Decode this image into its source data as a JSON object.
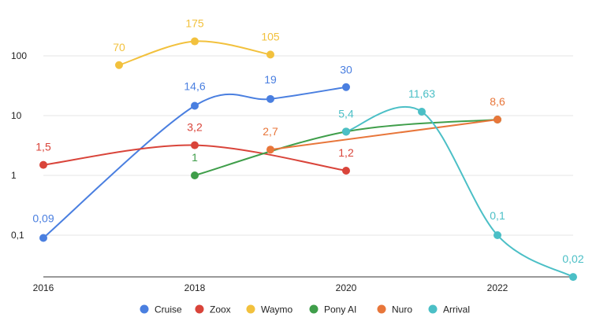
{
  "chart_data": {
    "type": "line",
    "title": "",
    "xlabel": "",
    "ylabel": "",
    "y_scale": "log",
    "ylim": [
      0.02,
      400
    ],
    "xlim": [
      2016,
      2023
    ],
    "grid": true,
    "legend_position": "bottom",
    "x_ticks": [
      "2016",
      "2018",
      "2020",
      "2022"
    ],
    "y_ticks": [
      "0,1",
      "1",
      "10",
      "100"
    ],
    "series": [
      {
        "name": "Cruise",
        "color": "#4a7fe0",
        "points": [
          {
            "x": 2016,
            "y": 0.09,
            "label": "0,09"
          },
          {
            "x": 2018,
            "y": 14.6,
            "label": "14,6"
          },
          {
            "x": 2019,
            "y": 19,
            "label": "19"
          },
          {
            "x": 2020,
            "y": 30,
            "label": "30"
          }
        ]
      },
      {
        "name": "Zoox",
        "color": "#d9443a",
        "points": [
          {
            "x": 2016,
            "y": 1.5,
            "label": "1,5"
          },
          {
            "x": 2018,
            "y": 3.2,
            "label": "3,2"
          },
          {
            "x": 2020,
            "y": 1.2,
            "label": "1,2"
          }
        ]
      },
      {
        "name": "Waymo",
        "color": "#f2c13d",
        "points": [
          {
            "x": 2017,
            "y": 70,
            "label": "70"
          },
          {
            "x": 2018,
            "y": 175,
            "label": "175"
          },
          {
            "x": 2019,
            "y": 105,
            "label": "105"
          }
        ]
      },
      {
        "name": "Pony AI",
        "color": "#3f9e4a",
        "points": [
          {
            "x": 2018,
            "y": 1,
            "label": "1"
          },
          {
            "x": 2020,
            "y": 5.4,
            "label": ""
          },
          {
            "x": 2022,
            "y": 8.6,
            "label": ""
          }
        ]
      },
      {
        "name": "Nuro",
        "color": "#e8763a",
        "points": [
          {
            "x": 2019,
            "y": 2.7,
            "label": "2,7"
          },
          {
            "x": 2022,
            "y": 8.6,
            "label": "8,6"
          }
        ]
      },
      {
        "name": "Arrival",
        "color": "#4bbfc6",
        "points": [
          {
            "x": 2020,
            "y": 5.4,
            "label": "5,4"
          },
          {
            "x": 2021,
            "y": 11.63,
            "label": "11,63"
          },
          {
            "x": 2022,
            "y": 0.1,
            "label": "0,1"
          },
          {
            "x": 2023,
            "y": 0.02,
            "label": "0,02"
          }
        ]
      }
    ]
  }
}
